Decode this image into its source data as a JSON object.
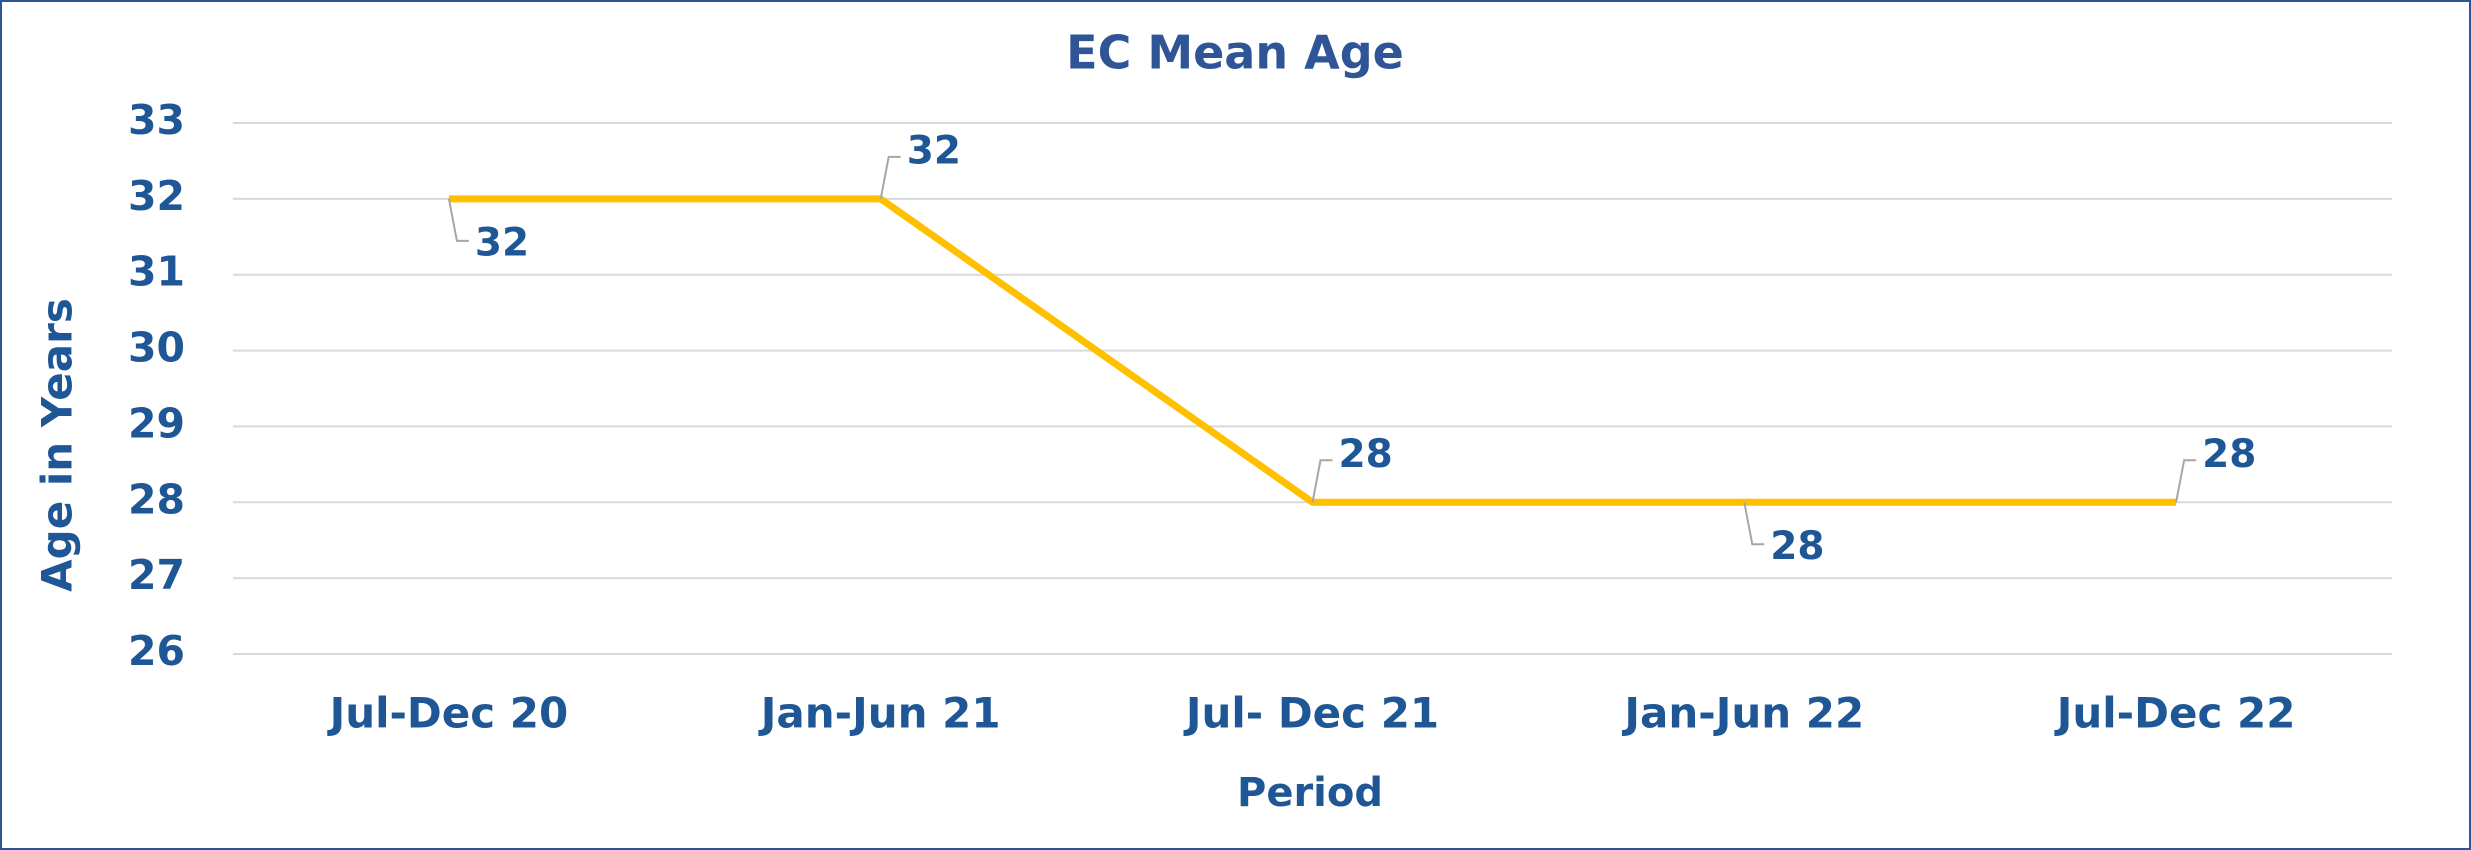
{
  "chart_data": {
    "type": "line",
    "title": "EC Mean Age",
    "x_label": "Period",
    "y_label": "Age in Years",
    "categories": [
      "Jul-Dec 20",
      "Jan-Jun 21",
      "Jul- Dec 21",
      "Jan-Jun 22",
      "Jul-Dec 22"
    ],
    "series": [
      {
        "name": "EC Mean Age",
        "color": "#ffc000",
        "values": [
          32,
          32,
          28,
          28,
          28
        ]
      }
    ],
    "ylim": [
      26,
      33
    ],
    "yticks": [
      26,
      27,
      28,
      29,
      30,
      31,
      32,
      33
    ],
    "grid": true
  }
}
